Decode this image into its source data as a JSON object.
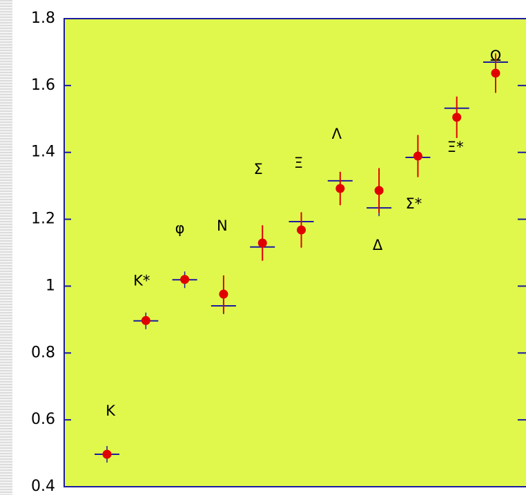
{
  "chart_data": {
    "type": "scatter",
    "categories": [
      "K",
      "K*",
      "φ",
      "N",
      "Σ",
      "Ξ",
      "Λ",
      "Δ",
      "Σ*",
      "Ξ*",
      "Ω"
    ],
    "series": [
      {
        "color": "#e00000",
        "values": [
          0.497,
          0.897,
          1.02,
          0.976,
          1.129,
          1.168,
          1.292,
          1.286,
          1.389,
          1.505,
          1.637
        ],
        "errors": [
          0,
          0,
          0,
          0.056,
          0.053,
          0.053,
          0.05,
          0.067,
          0.063,
          0.062,
          0.059
        ]
      },
      {
        "color": "#1a1aa0",
        "values": [
          0.497,
          0.896,
          1.019,
          0.941,
          1.117,
          1.193,
          1.315,
          1.234,
          1.385,
          1.532,
          1.67
        ]
      }
    ],
    "ylim": [
      0.4,
      1.8
    ],
    "yticks": [
      0.4,
      0.6,
      0.8,
      1,
      1.2,
      1.4,
      1.6,
      1.8
    ],
    "background": "#e0f84c"
  }
}
